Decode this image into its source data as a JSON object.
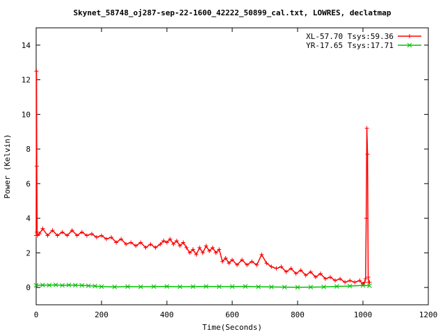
{
  "chart_data": {
    "type": "line",
    "title": "Skynet_58748_oj287-sep-22-1600_42222_50899_cal.txt, LOWRES, declatmap",
    "xlabel": "Time(Seconds)",
    "ylabel": "Power (Kelvin)",
    "xlim": [
      0,
      1200
    ],
    "ylim": [
      -1,
      15
    ],
    "xticks": [
      0,
      200,
      400,
      600,
      800,
      1000,
      1200
    ],
    "yticks": [
      0,
      2,
      4,
      6,
      8,
      10,
      12,
      14
    ],
    "xtick_labels": [
      "0",
      "200",
      "400",
      "600",
      "800",
      "1000",
      "1200"
    ],
    "ytick_labels": [
      "0",
      "2",
      "4",
      "6",
      "8",
      "10",
      "12",
      "14"
    ],
    "grid": false,
    "legend_position": "top-right",
    "series": [
      {
        "name": "XL-57.70 Tsys:59.36",
        "color": "#ff0000",
        "marker": "plus",
        "x": [
          0,
          1,
          2,
          3,
          4,
          10,
          20,
          35,
          50,
          65,
          80,
          95,
          110,
          125,
          140,
          155,
          170,
          185,
          200,
          215,
          230,
          245,
          260,
          275,
          290,
          305,
          320,
          335,
          350,
          365,
          380,
          390,
          400,
          410,
          420,
          430,
          440,
          450,
          460,
          470,
          480,
          490,
          500,
          510,
          520,
          530,
          540,
          550,
          560,
          570,
          580,
          590,
          600,
          615,
          630,
          645,
          660,
          675,
          690,
          705,
          720,
          735,
          750,
          765,
          780,
          795,
          810,
          825,
          840,
          855,
          870,
          885,
          900,
          915,
          930,
          945,
          960,
          975,
          990,
          1000,
          1005,
          1008,
          1010,
          1012,
          1014,
          1016,
          1018,
          1020
        ],
        "y": [
          3.0,
          12.5,
          7.0,
          3.2,
          3.0,
          3.1,
          3.4,
          3.0,
          3.3,
          3.0,
          3.2,
          3.0,
          3.3,
          3.0,
          3.2,
          3.0,
          3.1,
          2.9,
          3.0,
          2.8,
          2.9,
          2.6,
          2.8,
          2.5,
          2.6,
          2.4,
          2.6,
          2.3,
          2.5,
          2.3,
          2.5,
          2.7,
          2.6,
          2.8,
          2.5,
          2.7,
          2.4,
          2.6,
          2.3,
          2.0,
          2.2,
          1.9,
          2.3,
          2.0,
          2.4,
          2.1,
          2.3,
          2.0,
          2.2,
          1.5,
          1.7,
          1.4,
          1.6,
          1.3,
          1.6,
          1.3,
          1.5,
          1.3,
          1.9,
          1.4,
          1.2,
          1.1,
          1.2,
          0.9,
          1.1,
          0.8,
          1.0,
          0.7,
          0.9,
          0.6,
          0.8,
          0.5,
          0.6,
          0.4,
          0.5,
          0.3,
          0.4,
          0.3,
          0.4,
          0.2,
          0.3,
          0.5,
          4.0,
          9.2,
          7.7,
          0.6,
          0.3,
          0.3
        ]
      },
      {
        "name": "YR-17.65 Tsys:17.71",
        "color": "#00c000",
        "marker": "cross",
        "x": [
          0,
          20,
          40,
          60,
          80,
          100,
          120,
          140,
          160,
          180,
          200,
          240,
          280,
          320,
          360,
          400,
          440,
          480,
          520,
          560,
          600,
          640,
          680,
          720,
          760,
          800,
          840,
          880,
          920,
          960,
          1000,
          1020
        ],
        "y": [
          0.12,
          0.14,
          0.13,
          0.15,
          0.12,
          0.14,
          0.13,
          0.12,
          0.1,
          0.08,
          0.05,
          0.03,
          0.05,
          0.04,
          0.05,
          0.06,
          0.04,
          0.05,
          0.06,
          0.05,
          0.05,
          0.06,
          0.04,
          0.03,
          0.02,
          0.01,
          0.02,
          0.03,
          0.06,
          0.08,
          0.12,
          0.1
        ]
      }
    ]
  }
}
